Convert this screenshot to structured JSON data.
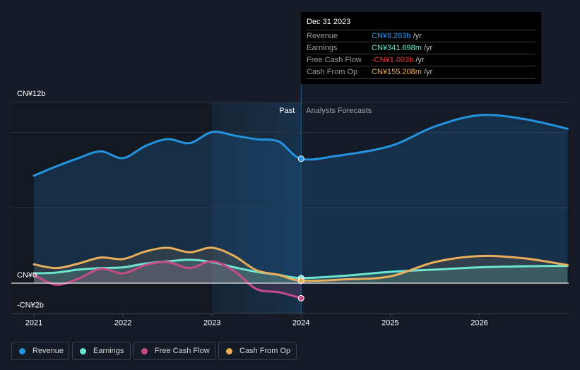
{
  "tooltip": {
    "date": "Dec 31 2023",
    "rows": [
      {
        "label": "Revenue",
        "value": "CN¥8.263b",
        "unit": " /yr",
        "color": "#2394df"
      },
      {
        "label": "Earnings",
        "value": "CN¥341.698m",
        "unit": " /yr",
        "color": "#6ce5d1"
      },
      {
        "label": "Free Cash Flow",
        "value": "-CN¥1.003b",
        "unit": " /yr",
        "color": "#e8383b"
      },
      {
        "label": "Cash From Op",
        "value": "CN¥155.208m",
        "unit": " /yr",
        "color": "#e9ae5a"
      }
    ]
  },
  "legend": [
    {
      "label": "Revenue",
      "color": "#2394df"
    },
    {
      "label": "Earnings",
      "color": "#6ce5d1"
    },
    {
      "label": "Free Cash Flow",
      "color": "#c84a8c"
    },
    {
      "label": "Cash From Op",
      "color": "#e9ae5a"
    }
  ],
  "chart_data": {
    "type": "line",
    "title": "",
    "xlabel": "",
    "ylabel": "",
    "ylim": [
      -2,
      12
    ],
    "xlim": [
      2020.99,
      2026.99
    ],
    "y_tick_labels": [
      {
        "value": 12,
        "label": "CN¥12b"
      },
      {
        "value": 0,
        "label": "CN¥0"
      },
      {
        "value": -2,
        "label": "-CN¥2b"
      }
    ],
    "gridlines": [
      12,
      10,
      5,
      0
    ],
    "x_ticks": [
      {
        "value": 2021,
        "label": "2021"
      },
      {
        "value": 2022,
        "label": "2022"
      },
      {
        "value": 2023,
        "label": "2023"
      },
      {
        "value": 2024,
        "label": "2024"
      },
      {
        "value": 2025,
        "label": "2025"
      },
      {
        "value": 2026,
        "label": "2026"
      }
    ],
    "divider": {
      "x": 2024,
      "past_label": "Past",
      "forecast_label": "Analysts Forecasts"
    },
    "highlight_band": [
      2023,
      2024
    ],
    "series": [
      {
        "name": "Revenue",
        "color": "#2394df",
        "unit": "CN¥b",
        "points": [
          [
            2021.0,
            7.13
          ],
          [
            2021.25,
            7.75
          ],
          [
            2021.5,
            8.3
          ],
          [
            2021.75,
            8.75
          ],
          [
            2022.0,
            8.3
          ],
          [
            2022.25,
            9.1
          ],
          [
            2022.5,
            9.56
          ],
          [
            2022.75,
            9.3
          ],
          [
            2023.0,
            10.03
          ],
          [
            2023.25,
            9.8
          ],
          [
            2023.5,
            9.55
          ],
          [
            2023.75,
            9.4
          ],
          [
            2024.0,
            8.26
          ],
          [
            2024.4,
            8.45
          ],
          [
            2025.0,
            9.1
          ],
          [
            2025.5,
            10.4
          ],
          [
            2026.0,
            11.15
          ],
          [
            2026.5,
            10.9
          ],
          [
            2026.99,
            10.25
          ]
        ]
      },
      {
        "name": "Earnings",
        "color": "#6ce5d1",
        "unit": "CN¥b",
        "points": [
          [
            2021.0,
            0.65
          ],
          [
            2021.25,
            0.7
          ],
          [
            2021.5,
            0.9
          ],
          [
            2021.75,
            1.0
          ],
          [
            2022.0,
            1.05
          ],
          [
            2022.25,
            1.3
          ],
          [
            2022.5,
            1.45
          ],
          [
            2022.75,
            1.55
          ],
          [
            2023.0,
            1.4
          ],
          [
            2023.25,
            1.05
          ],
          [
            2023.5,
            0.75
          ],
          [
            2023.75,
            0.55
          ],
          [
            2024.0,
            0.34
          ],
          [
            2024.5,
            0.5
          ],
          [
            2025.0,
            0.75
          ],
          [
            2025.5,
            0.9
          ],
          [
            2026.0,
            1.05
          ],
          [
            2026.5,
            1.12
          ],
          [
            2026.99,
            1.15
          ]
        ]
      },
      {
        "name": "Free Cash Flow",
        "color": "#c84a8c",
        "unit": "CN¥b",
        "points": [
          [
            2021.0,
            0.55
          ],
          [
            2021.25,
            -0.1
          ],
          [
            2021.5,
            0.3
          ],
          [
            2021.75,
            0.95
          ],
          [
            2022.0,
            0.65
          ],
          [
            2022.25,
            1.2
          ],
          [
            2022.5,
            1.4
          ],
          [
            2022.75,
            1.0
          ],
          [
            2023.0,
            1.45
          ],
          [
            2023.25,
            0.8
          ],
          [
            2023.5,
            -0.4
          ],
          [
            2023.75,
            -0.6
          ],
          [
            2024.0,
            -1.0
          ]
        ]
      },
      {
        "name": "Cash From Op",
        "color": "#e9ae5a",
        "unit": "CN¥b",
        "points": [
          [
            2021.0,
            1.25
          ],
          [
            2021.25,
            1.0
          ],
          [
            2021.5,
            1.3
          ],
          [
            2021.75,
            1.7
          ],
          [
            2022.0,
            1.6
          ],
          [
            2022.25,
            2.1
          ],
          [
            2022.5,
            2.35
          ],
          [
            2022.75,
            2.05
          ],
          [
            2023.0,
            2.35
          ],
          [
            2023.25,
            1.8
          ],
          [
            2023.5,
            0.85
          ],
          [
            2023.75,
            0.55
          ],
          [
            2024.0,
            0.16
          ],
          [
            2024.5,
            0.25
          ],
          [
            2025.0,
            0.45
          ],
          [
            2025.5,
            1.4
          ],
          [
            2026.0,
            1.8
          ],
          [
            2026.5,
            1.65
          ],
          [
            2026.99,
            1.2
          ]
        ]
      }
    ]
  }
}
